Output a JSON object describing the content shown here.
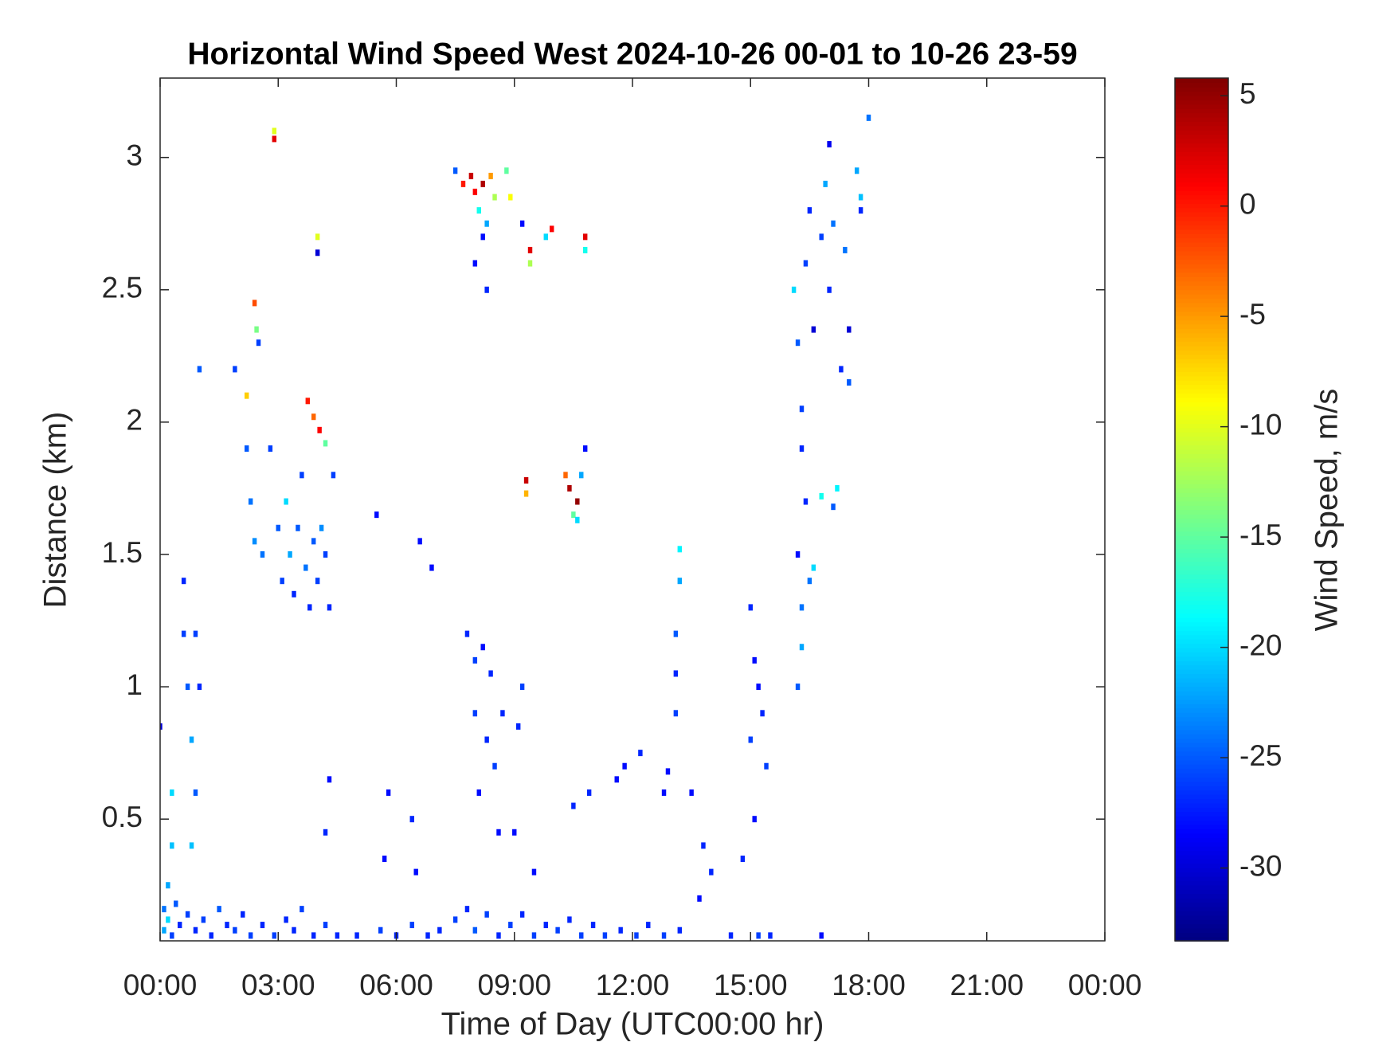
{
  "chart_data": {
    "type": "heatmap",
    "title": "Horizontal Wind Speed West 2024-10-26 00-01 to 10-26 23-59",
    "x_label": "Time of Day (UTC00:00 hr)",
    "y_label": "Distance (km)",
    "colorbar_label": "Wind Speed, m/s",
    "colormap": "jet",
    "xlim": [
      0,
      24
    ],
    "xticks": [
      {
        "value": 0,
        "label": "00:00"
      },
      {
        "value": 3,
        "label": "03:00"
      },
      {
        "value": 6,
        "label": "06:00"
      },
      {
        "value": 9,
        "label": "09:00"
      },
      {
        "value": 12,
        "label": "12:00"
      },
      {
        "value": 15,
        "label": "15:00"
      },
      {
        "value": 18,
        "label": "18:00"
      },
      {
        "value": 21,
        "label": "21:00"
      },
      {
        "value": 24,
        "label": "00:00"
      }
    ],
    "ylim": [
      0.04,
      3.3
    ],
    "yticks": [
      0.5,
      1,
      1.5,
      2,
      2.5,
      3
    ],
    "clim": [
      -33.3,
      5.8
    ],
    "cticks": [
      5,
      0,
      -5,
      -10,
      -15,
      -20,
      -25,
      -30
    ],
    "x": [
      0.1,
      0.1,
      0.2,
      0.3,
      0.4,
      0.5,
      0.7,
      0.9,
      1.1,
      1.3,
      1.5,
      1.7,
      1.9,
      2.1,
      2.3,
      2.6,
      2.9,
      3.2,
      3.4,
      3.6,
      3.9,
      4.2,
      4.5,
      5.0,
      5.6,
      6.0,
      6.4,
      6.8,
      7.1,
      7.5,
      7.8,
      8.0,
      8.3,
      8.6,
      8.9,
      9.2,
      9.5,
      9.8,
      10.1,
      10.4,
      10.7,
      11.0,
      11.3,
      11.7,
      12.1,
      12.4,
      12.8,
      13.2,
      14.5,
      15.2,
      15.5,
      16.8,
      0.6,
      0.6,
      0.7,
      0.8,
      0.9,
      0.8,
      0.9,
      1.0,
      0.3,
      0.3,
      0.2,
      0.0,
      1.9,
      2.2,
      2.2,
      2.3,
      2.4,
      2.4,
      2.45,
      2.5,
      2.6,
      2.8,
      3.0,
      3.1,
      3.2,
      3.3,
      3.4,
      3.5,
      3.6,
      3.7,
      3.8,
      3.9,
      4.0,
      4.1,
      4.2,
      4.3,
      4.4,
      3.75,
      3.9,
      4.05,
      4.2,
      2.9,
      2.9,
      4.0,
      4.0,
      4.3,
      4.2,
      1.0,
      5.5,
      6.6,
      6.9,
      5.8,
      6.4,
      5.7,
      6.5,
      7.5,
      7.7,
      7.9,
      8.0,
      8.2,
      8.4,
      8.5,
      8.1,
      8.3,
      8.2,
      8.8,
      8.9,
      9.2,
      8.0,
      8.3,
      9.4,
      9.4,
      9.8,
      9.95,
      10.8,
      10.8,
      9.3,
      9.3,
      10.3,
      10.4,
      10.6,
      10.5,
      10.7,
      10.8,
      10.6,
      7.8,
      8.0,
      8.2,
      8.4,
      8.0,
      8.3,
      8.5,
      8.1,
      8.7,
      9.2,
      9.1,
      8.6,
      9.0,
      9.5,
      11.6,
      10.9,
      11.8,
      12.2,
      12.8,
      10.5,
      13.1,
      13.1,
      13.2,
      13.2,
      13.1,
      12.9,
      13.8,
      13.5,
      14.0,
      13.7,
      15.0,
      15.1,
      15.0,
      15.3,
      15.1,
      14.8,
      15.4,
      15.2,
      16.1,
      16.2,
      16.3,
      16.3,
      16.4,
      16.2,
      16.3,
      16.3,
      16.5,
      16.2,
      16.4,
      16.5,
      16.6,
      16.8,
      16.9,
      17.1,
      17.0,
      17.3,
      17.5,
      17.5,
      17.7,
      17.8,
      17.8,
      18.0,
      17.0,
      16.8,
      17.1,
      17.2,
      16.6,
      17.4
    ],
    "y": [
      0.08,
      0.16,
      0.12,
      0.06,
      0.18,
      0.1,
      0.14,
      0.08,
      0.12,
      0.06,
      0.16,
      0.1,
      0.08,
      0.14,
      0.06,
      0.1,
      0.06,
      0.12,
      0.08,
      0.16,
      0.06,
      0.1,
      0.06,
      0.06,
      0.08,
      0.06,
      0.1,
      0.06,
      0.08,
      0.12,
      0.16,
      0.08,
      0.14,
      0.06,
      0.1,
      0.14,
      0.06,
      0.1,
      0.08,
      0.12,
      0.06,
      0.1,
      0.06,
      0.08,
      0.06,
      0.1,
      0.06,
      0.08,
      0.06,
      0.06,
      0.06,
      0.06,
      1.4,
      1.2,
      1.0,
      0.8,
      0.6,
      0.4,
      1.2,
      1.0,
      0.6,
      0.4,
      0.25,
      0.85,
      2.2,
      2.1,
      1.9,
      1.7,
      1.55,
      2.45,
      2.35,
      2.3,
      1.5,
      1.9,
      1.6,
      1.4,
      1.7,
      1.5,
      1.35,
      1.6,
      1.8,
      1.45,
      1.3,
      1.55,
      1.4,
      1.6,
      1.5,
      1.3,
      1.8,
      2.08,
      2.02,
      1.97,
      1.92,
      3.07,
      3.1,
      2.7,
      2.64,
      0.65,
      0.45,
      2.2,
      1.65,
      1.55,
      1.45,
      0.6,
      0.5,
      0.35,
      0.3,
      2.95,
      2.9,
      2.93,
      2.87,
      2.9,
      2.93,
      2.85,
      2.8,
      2.75,
      2.7,
      2.95,
      2.85,
      2.75,
      2.6,
      2.5,
      2.65,
      2.6,
      2.7,
      2.73,
      2.7,
      2.65,
      1.78,
      1.73,
      1.8,
      1.75,
      1.7,
      1.65,
      1.8,
      1.9,
      1.63,
      1.2,
      1.1,
      1.15,
      1.05,
      0.9,
      0.8,
      0.7,
      0.6,
      0.9,
      1.0,
      0.85,
      0.45,
      0.45,
      0.3,
      0.65,
      0.6,
      0.7,
      0.75,
      0.6,
      0.55,
      0.9,
      1.2,
      1.4,
      1.52,
      1.05,
      0.68,
      0.4,
      0.6,
      0.3,
      0.2,
      1.3,
      1.1,
      0.8,
      0.9,
      0.5,
      0.35,
      0.7,
      1.0,
      2.5,
      2.3,
      2.05,
      1.9,
      1.7,
      1.5,
      1.3,
      1.15,
      1.4,
      1.0,
      2.6,
      2.8,
      2.35,
      2.7,
      2.9,
      2.75,
      2.5,
      2.2,
      2.35,
      2.15,
      2.95,
      2.8,
      2.85,
      3.15,
      3.05,
      1.72,
      1.68,
      1.75,
      1.45,
      2.65
    ],
    "values": [
      -22,
      -24,
      -20,
      -26,
      -25,
      -27,
      -26,
      -27,
      -26,
      -27,
      -25,
      -27,
      -26,
      -27,
      -26,
      -27,
      -26,
      -27,
      -27,
      -26,
      -27,
      -26,
      -27,
      -27,
      -26,
      -27,
      -26,
      -27,
      -27,
      -26,
      -27,
      -25,
      -26,
      -27,
      -26,
      -27,
      -26,
      -27,
      -26,
      -27,
      -26,
      -27,
      -26,
      -27,
      -26,
      -27,
      -26,
      -27,
      -27,
      -26,
      -27,
      -28,
      -27,
      -26,
      -25,
      -22,
      -25,
      -21,
      -26,
      -27,
      -20,
      -21,
      -22,
      -30,
      -26,
      -7,
      -25,
      -24,
      -23,
      -2,
      -14,
      -26,
      -24,
      -26,
      -25,
      -26,
      -20,
      -22,
      -27,
      -25,
      -26,
      -24,
      -27,
      -25,
      -26,
      -23,
      -26,
      -27,
      -26,
      0,
      -3,
      1,
      -15,
      2,
      -10,
      -10,
      -30,
      -28,
      -27,
      -25,
      -28,
      -28,
      -28,
      -28,
      -27,
      -28,
      -28,
      -25,
      0,
      3,
      1,
      4,
      -5,
      -12,
      -18,
      -22,
      -28,
      -15,
      -9,
      -28,
      -28,
      -27,
      2,
      -12,
      -20,
      1,
      2,
      -18,
      3,
      -6,
      -3,
      4,
      5,
      -15,
      -22,
      -28,
      -20,
      -27,
      -26,
      -28,
      -27,
      -26,
      -27,
      -26,
      -28,
      -27,
      -26,
      -27,
      -28,
      -28,
      -28,
      -28,
      -27,
      -28,
      -27,
      -28,
      -27,
      -26,
      -25,
      -22,
      -19,
      -27,
      -28,
      -27,
      -28,
      -27,
      -28,
      -27,
      -28,
      -26,
      -27,
      -28,
      -27,
      -26,
      -28,
      -20,
      -25,
      -26,
      -27,
      -27,
      -28,
      -24,
      -22,
      -24,
      -25,
      -26,
      -27,
      -30,
      -26,
      -22,
      -24,
      -27,
      -27,
      -30,
      -25,
      -22,
      -27,
      -21,
      -24,
      -29,
      -18,
      -25,
      -19,
      -20,
      -24
    ]
  }
}
